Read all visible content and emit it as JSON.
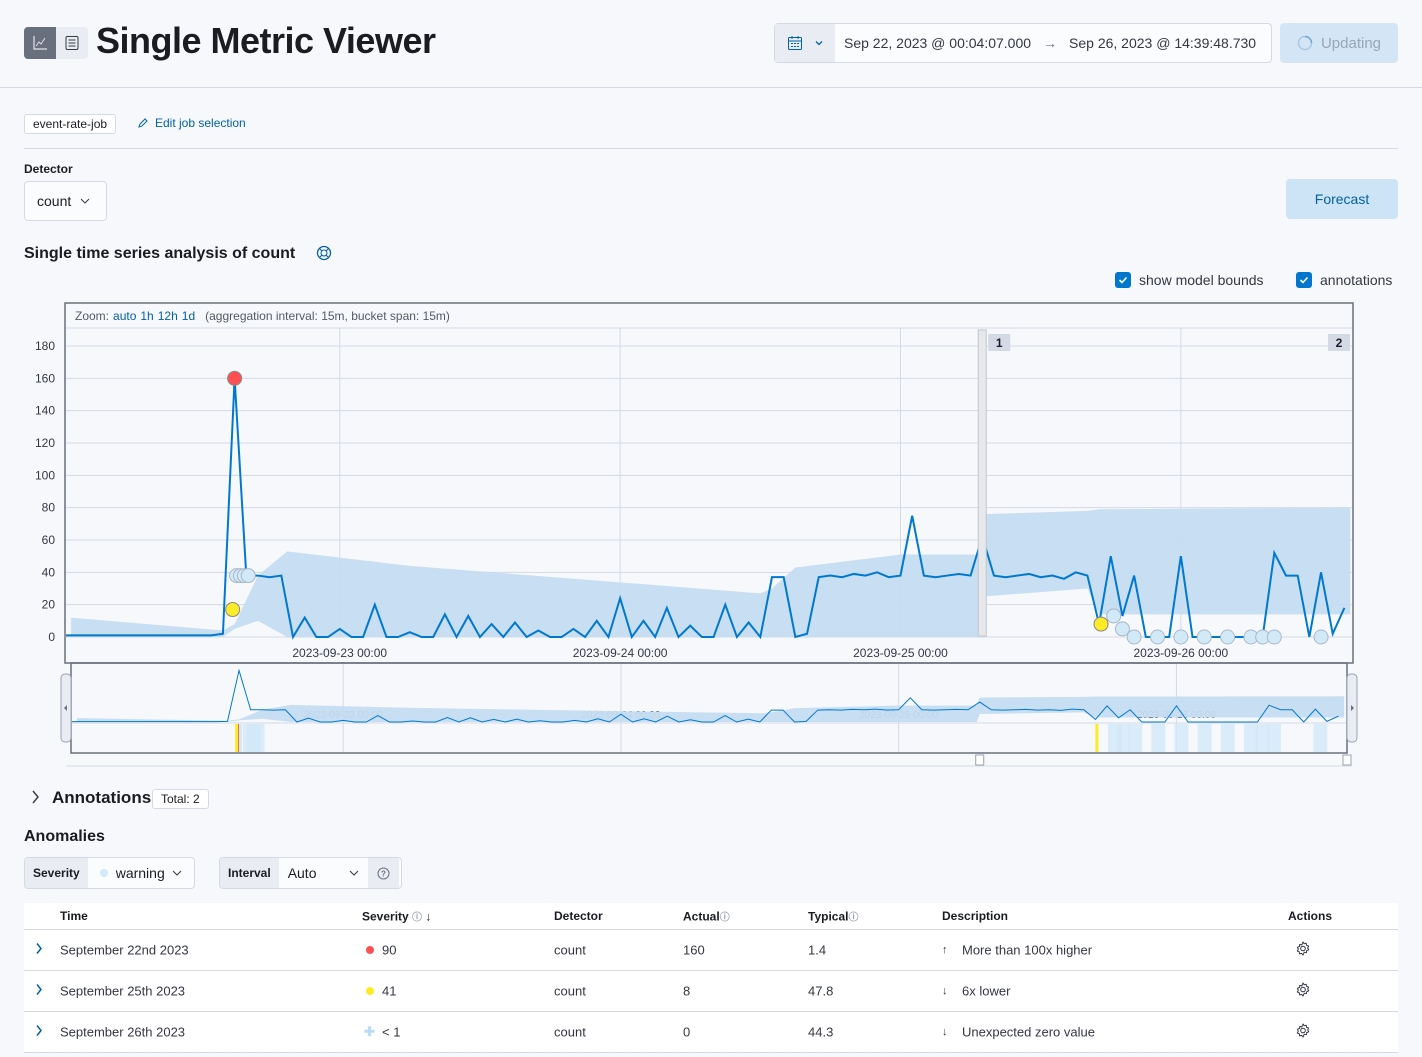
{
  "header": {
    "title": "Single Metric Viewer",
    "view_icons": [
      "chart-icon",
      "table-icon"
    ],
    "date_start": "Sep 22, 2023 @ 00:04:07.000",
    "date_end": "Sep 26, 2023 @ 14:39:48.730",
    "update_label": "Updating"
  },
  "job": {
    "badge": "event-rate-job",
    "edit_label": "Edit job selection"
  },
  "detector": {
    "label": "Detector",
    "value": "count"
  },
  "forecast_label": "Forecast",
  "analysis_title": "Single time series analysis of count",
  "toggles": {
    "model_bounds": "show model bounds",
    "model_bounds_checked": true,
    "annotations": "annotations",
    "annotations_checked": true
  },
  "zoom": {
    "prefix": "Zoom:",
    "options": [
      "auto",
      "1h",
      "12h",
      "1d"
    ],
    "info": "(aggregation interval: 15m, bucket span: 15m)"
  },
  "chart_data": {
    "type": "line",
    "x_domain": [
      "2023-09-22T00:34",
      "2023-09-26T14:39"
    ],
    "ylim": [
      0,
      180
    ],
    "yticks": [
      0,
      20,
      40,
      60,
      80,
      100,
      120,
      140,
      160,
      180
    ],
    "xticks": [
      "2023-09-23 00:00",
      "2023-09-24 00:00",
      "2023-09-25 00:00",
      "2023-09-26 00:00"
    ],
    "grid": true,
    "actual": {
      "start": "2023-09-22T00:00",
      "interval_minutes": 60,
      "values": [
        1,
        1,
        1,
        1,
        1,
        1,
        1,
        1,
        1,
        1,
        1,
        1,
        1,
        1,
        2,
        160,
        38,
        38,
        37,
        38,
        0,
        12,
        0,
        0,
        5,
        0,
        0,
        20,
        0,
        0,
        3,
        0,
        0,
        14,
        0,
        13,
        0,
        8,
        0,
        9,
        0,
        4,
        0,
        0,
        5,
        0,
        10,
        0,
        24,
        0,
        10,
        0,
        18,
        0,
        7,
        0,
        0,
        20,
        0,
        9,
        0,
        37,
        37,
        0,
        2,
        37,
        38,
        37,
        39,
        38,
        40,
        37,
        38,
        75,
        38,
        37,
        38,
        39,
        38,
        62,
        38,
        37,
        38,
        39,
        37,
        38,
        36,
        40,
        38,
        8,
        50,
        13,
        38,
        0,
        0,
        0,
        50,
        0,
        0,
        0,
        0,
        0,
        0,
        0,
        52,
        38,
        38,
        0,
        40,
        2,
        18
      ]
    },
    "model_bounds": [
      [
        "2023-09-22T01:00",
        0,
        12
      ],
      [
        "2023-09-22T14:00",
        0,
        4
      ],
      [
        "2023-09-22T15:00",
        5,
        8
      ],
      [
        "2023-09-22T17:00",
        10,
        38
      ],
      [
        "2023-09-22T19:30",
        0,
        53
      ],
      [
        "2023-09-23T06:00",
        0,
        44
      ],
      [
        "2023-09-24T12:00",
        0,
        27
      ],
      [
        "2023-09-24T13:00",
        0,
        30
      ],
      [
        "2023-09-24T15:00",
        0,
        43
      ],
      [
        "2023-09-25T00:00",
        0,
        51
      ],
      [
        "2023-09-25T06:45",
        0,
        51
      ],
      [
        "2023-09-25T07:00",
        25,
        76
      ],
      [
        "2023-09-25T16:00",
        30,
        78
      ],
      [
        "2023-09-25T17:00",
        14,
        79
      ],
      [
        "2023-09-26T14:30",
        14,
        80
      ]
    ],
    "anomalies": [
      [
        "2023-09-22T15:00",
        160,
        "critical"
      ],
      [
        "2023-09-22T14:50",
        17,
        "major"
      ],
      [
        "2023-09-22T15:10",
        38,
        "warning"
      ],
      [
        "2023-09-22T15:30",
        38,
        "low"
      ],
      [
        "2023-09-22T15:50",
        38,
        "low"
      ],
      [
        "2023-09-22T16:10",
        38,
        "low"
      ],
      [
        "2023-09-25T17:10",
        8,
        "major"
      ],
      [
        "2023-09-25T18:15",
        13,
        "low"
      ],
      [
        "2023-09-25T19:00",
        5,
        "low"
      ],
      [
        "2023-09-25T20:00",
        0,
        "low"
      ],
      [
        "2023-09-25T22:00",
        0,
        "low"
      ],
      [
        "2023-09-26T00:00",
        0,
        "low"
      ],
      [
        "2023-09-26T02:00",
        0,
        "low"
      ],
      [
        "2023-09-26T04:00",
        0,
        "low"
      ],
      [
        "2023-09-26T06:00",
        0,
        "low"
      ],
      [
        "2023-09-26T07:00",
        0,
        "low"
      ],
      [
        "2023-09-26T08:00",
        0,
        "low"
      ],
      [
        "2023-09-26T12:00",
        0,
        "low"
      ]
    ],
    "annotations": [
      {
        "label": "1",
        "time": "2023-09-25T07:00"
      },
      {
        "label": "2",
        "time": "2023-09-26T14:39"
      }
    ]
  },
  "colors": {
    "critical": "#fe5050",
    "major": "#fdec25",
    "warning": "#8bc8fb",
    "low": "#d2e9f7",
    "line": "#0078cf",
    "bounds": "#c5dcf2"
  },
  "annotations_section": {
    "title": "Annotations",
    "total": "Total: 2"
  },
  "anomalies_section": {
    "title": "Anomalies",
    "severity_label": "Severity",
    "severity_value": "warning",
    "interval_label": "Interval",
    "interval_value": "Auto"
  },
  "table": {
    "columns": [
      "Time",
      "Severity",
      "Detector",
      "Actual",
      "Typical",
      "Description",
      "Actions"
    ],
    "rows": [
      {
        "time": "September 22nd 2023",
        "severity": "90",
        "sev_level": "critical",
        "detector": "count",
        "actual": "160",
        "typical": "1.4",
        "description": "More than 100x higher",
        "dir": "up"
      },
      {
        "time": "September 25th 2023",
        "severity": "41",
        "sev_level": "major",
        "detector": "count",
        "actual": "8",
        "typical": "47.8",
        "description": "6x lower",
        "dir": "down"
      },
      {
        "time": "September 26th 2023",
        "severity": "< 1",
        "sev_level": "low",
        "detector": "count",
        "actual": "0",
        "typical": "44.3",
        "description": "Unexpected zero value",
        "dir": "down"
      }
    ]
  }
}
